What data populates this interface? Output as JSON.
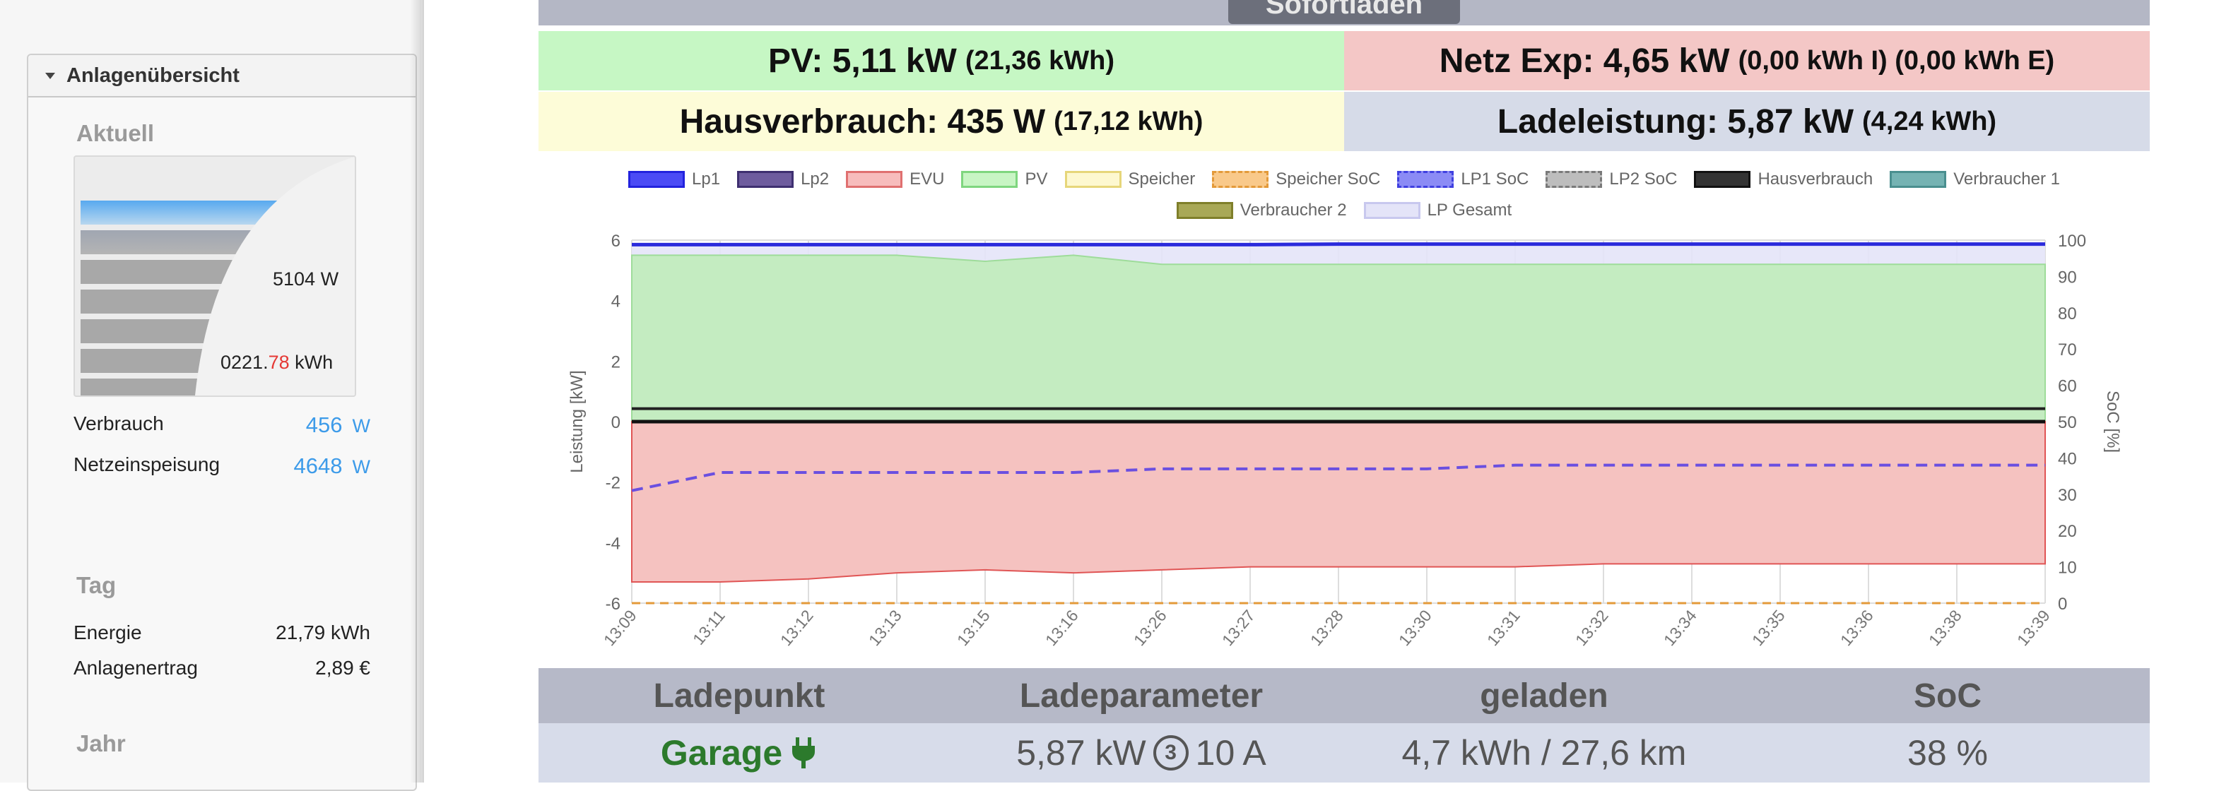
{
  "sidebar": {
    "panel_title": "Anlagenübersicht",
    "aktuell_heading": "Aktuell",
    "gauge": {
      "power": "5104 W",
      "energy_prefix": "0221.",
      "energy_red": "78",
      "energy_unit": " kWh",
      "fill_fraction": 0.92
    },
    "rows": [
      {
        "label": "Verbrauch",
        "value": "456",
        "unit": "W"
      },
      {
        "label": "Netzeinspeisung",
        "value": "4648",
        "unit": "W"
      }
    ],
    "tag_heading": "Tag",
    "tag_rows": [
      {
        "label": "Energie",
        "value": "21,79 kWh"
      },
      {
        "label": "Anlagenertrag",
        "value": "2,89 €"
      }
    ],
    "jahr_heading": "Jahr"
  },
  "top_tab": {
    "label": "Sofortladen"
  },
  "tiles": {
    "pv": {
      "main": "PV: 5,11 kW",
      "sub": "(21,36 kWh)"
    },
    "netz": {
      "main": "Netz Exp: 4,65 kW",
      "sub": "(0,00 kWh I) (0,00 kWh E)"
    },
    "haus": {
      "main": "Hausverbrauch: 435 W",
      "sub": "(17,12 kWh)"
    },
    "lade": {
      "main": "Ladeleistung: 5,87 kW",
      "sub": "(4,24 kWh)"
    }
  },
  "legend": [
    {
      "label": "Lp1",
      "fill": "#4b4bf5",
      "stroke": "#2222dd",
      "dash": false
    },
    {
      "label": "Lp2",
      "fill": "#6e5c9e",
      "stroke": "#3e2f70",
      "dash": false
    },
    {
      "label": "EVU",
      "fill": "#f7bcbc",
      "stroke": "#e07070",
      "dash": false
    },
    {
      "label": "PV",
      "fill": "#c8f5c4",
      "stroke": "#7fd67f",
      "dash": false
    },
    {
      "label": "Speicher",
      "fill": "#fdf8d0",
      "stroke": "#e6d67a",
      "dash": false
    },
    {
      "label": "Speicher SoC",
      "fill": "#f9c98a",
      "stroke": "#e39a3a",
      "dash": true
    },
    {
      "label": "LP1 SoC",
      "fill": "#8b8bf5",
      "stroke": "#4040e0",
      "dash": true
    },
    {
      "label": "LP2 SoC",
      "fill": "#bdbdbd",
      "stroke": "#7a7a7a",
      "dash": true
    },
    {
      "label": "Hausverbrauch",
      "fill": "#333333",
      "stroke": "#111111",
      "dash": false
    },
    {
      "label": "Verbraucher 1",
      "fill": "#75b3b3",
      "stroke": "#4a8f8f",
      "dash": false
    },
    {
      "label": "Verbraucher 2",
      "fill": "#a8a856",
      "stroke": "#7f7f2a",
      "dash": false
    },
    {
      "label": "LP Gesamt",
      "fill": "#e4e4f8",
      "stroke": "#c8c8ee",
      "dash": false
    }
  ],
  "chart_data": {
    "type": "area",
    "x": [
      "13:09",
      "13:11",
      "13:12",
      "13:13",
      "13:15",
      "13:16",
      "13:26",
      "13:27",
      "13:28",
      "13:30",
      "13:31",
      "13:32",
      "13:34",
      "13:35",
      "13:36",
      "13:38",
      "13:39"
    ],
    "ylabel": "Leistung [kW]",
    "y2label": "SoC [%]",
    "ylim": [
      -6,
      6
    ],
    "y2lim": [
      0,
      100
    ],
    "yticks": [
      6,
      4,
      2,
      0,
      -2,
      -4,
      -6
    ],
    "y2ticks": [
      100,
      90,
      80,
      70,
      60,
      50,
      40,
      30,
      20,
      10,
      0
    ],
    "grid": true,
    "series": [
      {
        "name": "PV",
        "values": [
          5.5,
          5.5,
          5.5,
          5.5,
          5.3,
          5.5,
          5.2,
          5.2,
          5.2,
          5.2,
          5.2,
          5.2,
          5.2,
          5.2,
          5.2,
          5.2,
          5.2
        ]
      },
      {
        "name": "EVU",
        "values": [
          -5.3,
          -5.3,
          -5.2,
          -5.0,
          -4.9,
          -5.0,
          -4.9,
          -4.8,
          -4.8,
          -4.8,
          -4.8,
          -4.7,
          -4.7,
          -4.7,
          -4.7,
          -4.7,
          -4.7
        ]
      },
      {
        "name": "Hausverbrauch",
        "values": [
          0.43,
          0.43,
          0.43,
          0.43,
          0.43,
          0.43,
          0.43,
          0.43,
          0.43,
          0.43,
          0.43,
          0.43,
          0.43,
          0.43,
          0.43,
          0.43,
          0.43
        ]
      },
      {
        "name": "Lp1",
        "values": [
          5.85,
          5.85,
          5.85,
          5.85,
          5.85,
          5.85,
          5.85,
          5.85,
          5.87,
          5.87,
          5.87,
          5.87,
          5.87,
          5.87,
          5.87,
          5.87,
          5.87
        ]
      },
      {
        "name": "LP1 SoC",
        "values": [
          31,
          36,
          36,
          36,
          36,
          36,
          37,
          37,
          37,
          37,
          38,
          38,
          38,
          38,
          38,
          38,
          38
        ]
      },
      {
        "name": "Speicher SoC",
        "values": [
          0,
          0,
          0,
          0,
          0,
          0,
          0,
          0,
          0,
          0,
          0,
          0,
          0,
          0,
          0,
          0,
          0
        ]
      }
    ]
  },
  "table": {
    "headers": [
      "Ladepunkt",
      "Ladeparameter",
      "geladen",
      "SoC"
    ],
    "row": {
      "ladepunkt": "Garage",
      "power": "5,87 kW",
      "phases": "3",
      "current": "10 A",
      "geladen": "4,7 kWh / 27,6 km",
      "soc": "38 %"
    }
  }
}
